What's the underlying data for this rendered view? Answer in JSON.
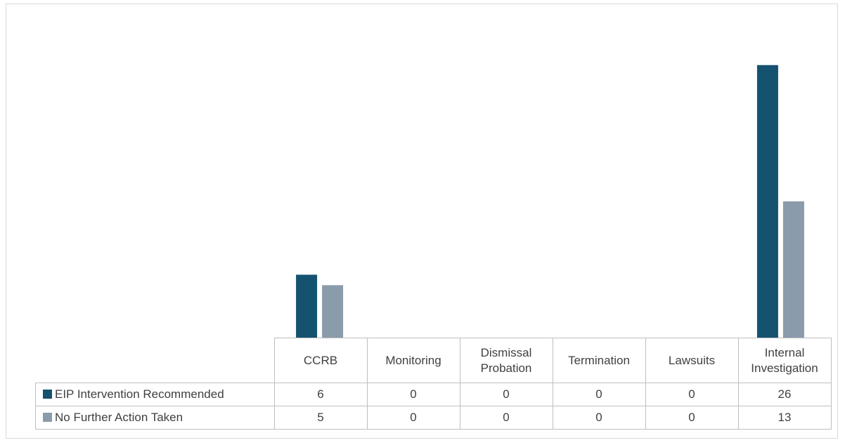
{
  "chart_data": {
    "type": "bar",
    "categories": [
      "CCRB",
      "Monitoring",
      "Dismissal Probation",
      "Termination",
      "Lawsuits",
      "Internal Investigation"
    ],
    "series": [
      {
        "name": "EIP Intervention Recommended",
        "color": "#145270",
        "values": [
          6,
          0,
          0,
          0,
          0,
          26
        ]
      },
      {
        "name": "No Further Action Taken",
        "color": "#8a9bab",
        "values": [
          5,
          0,
          0,
          0,
          0,
          13
        ]
      }
    ],
    "ylim": [
      0,
      30
    ]
  }
}
